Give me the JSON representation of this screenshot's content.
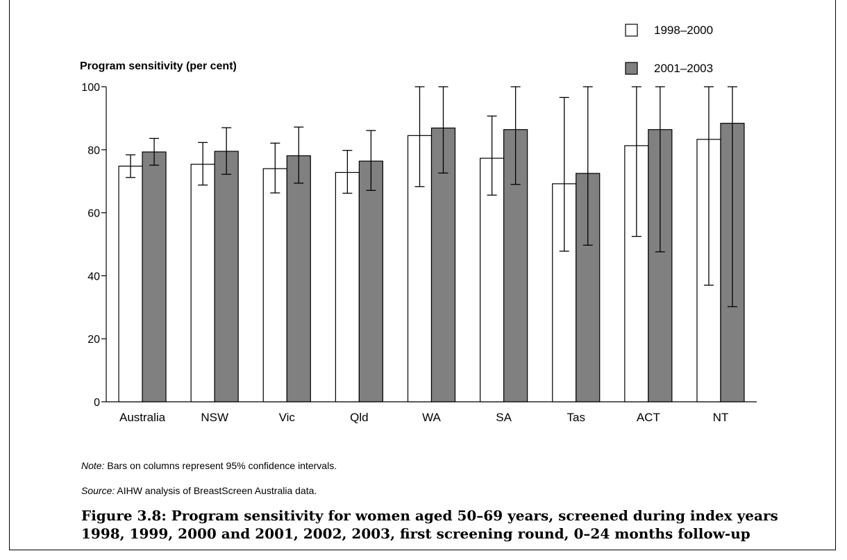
{
  "chart_data": {
    "type": "bar",
    "ylabel": "Program sensitivity (per cent)",
    "ylim": [
      0,
      100
    ],
    "yticks": [
      0,
      20,
      40,
      60,
      80,
      100
    ],
    "categories": [
      "Australia",
      "NSW",
      "Vic",
      "Qld",
      "WA",
      "SA",
      "Tas",
      "ACT",
      "NT"
    ],
    "series": [
      {
        "name": "1998–2000",
        "color": "#ffffff",
        "values": [
          74.8,
          75.4,
          74.0,
          72.8,
          84.5,
          77.3,
          69.2,
          81.3,
          83.3
        ],
        "ci_low": [
          71.2,
          68.8,
          66.3,
          66.2,
          68.3,
          65.6,
          47.8,
          52.5,
          37.0
        ],
        "ci_high": [
          78.4,
          82.3,
          82.1,
          79.8,
          100,
          90.7,
          96.6,
          100,
          100
        ]
      },
      {
        "name": "2001–2003",
        "color": "#808080",
        "values": [
          79.3,
          79.5,
          78.1,
          76.4,
          86.9,
          86.4,
          72.5,
          86.4,
          88.4
        ],
        "ci_low": [
          75.1,
          72.2,
          69.4,
          67.1,
          72.6,
          69.0,
          49.7,
          47.6,
          30.2
        ],
        "ci_high": [
          83.6,
          87.0,
          87.2,
          86.1,
          100,
          100,
          100,
          100,
          100
        ]
      }
    ],
    "legend_position": "top-right",
    "grid": false
  },
  "notes": {
    "note_label": "Note:",
    "note_text": " Bars on columns represent 95% confidence intervals.",
    "source_label": "Source:",
    "source_text": " AIHW analysis of BreastScreen Australia data."
  },
  "caption": "Figure 3.8: Program sensitivity for women aged 50–69 years, screened during index years 1998, 1999, 2000 and 2001, 2002, 2003, first screening round, 0–24 months follow-up"
}
